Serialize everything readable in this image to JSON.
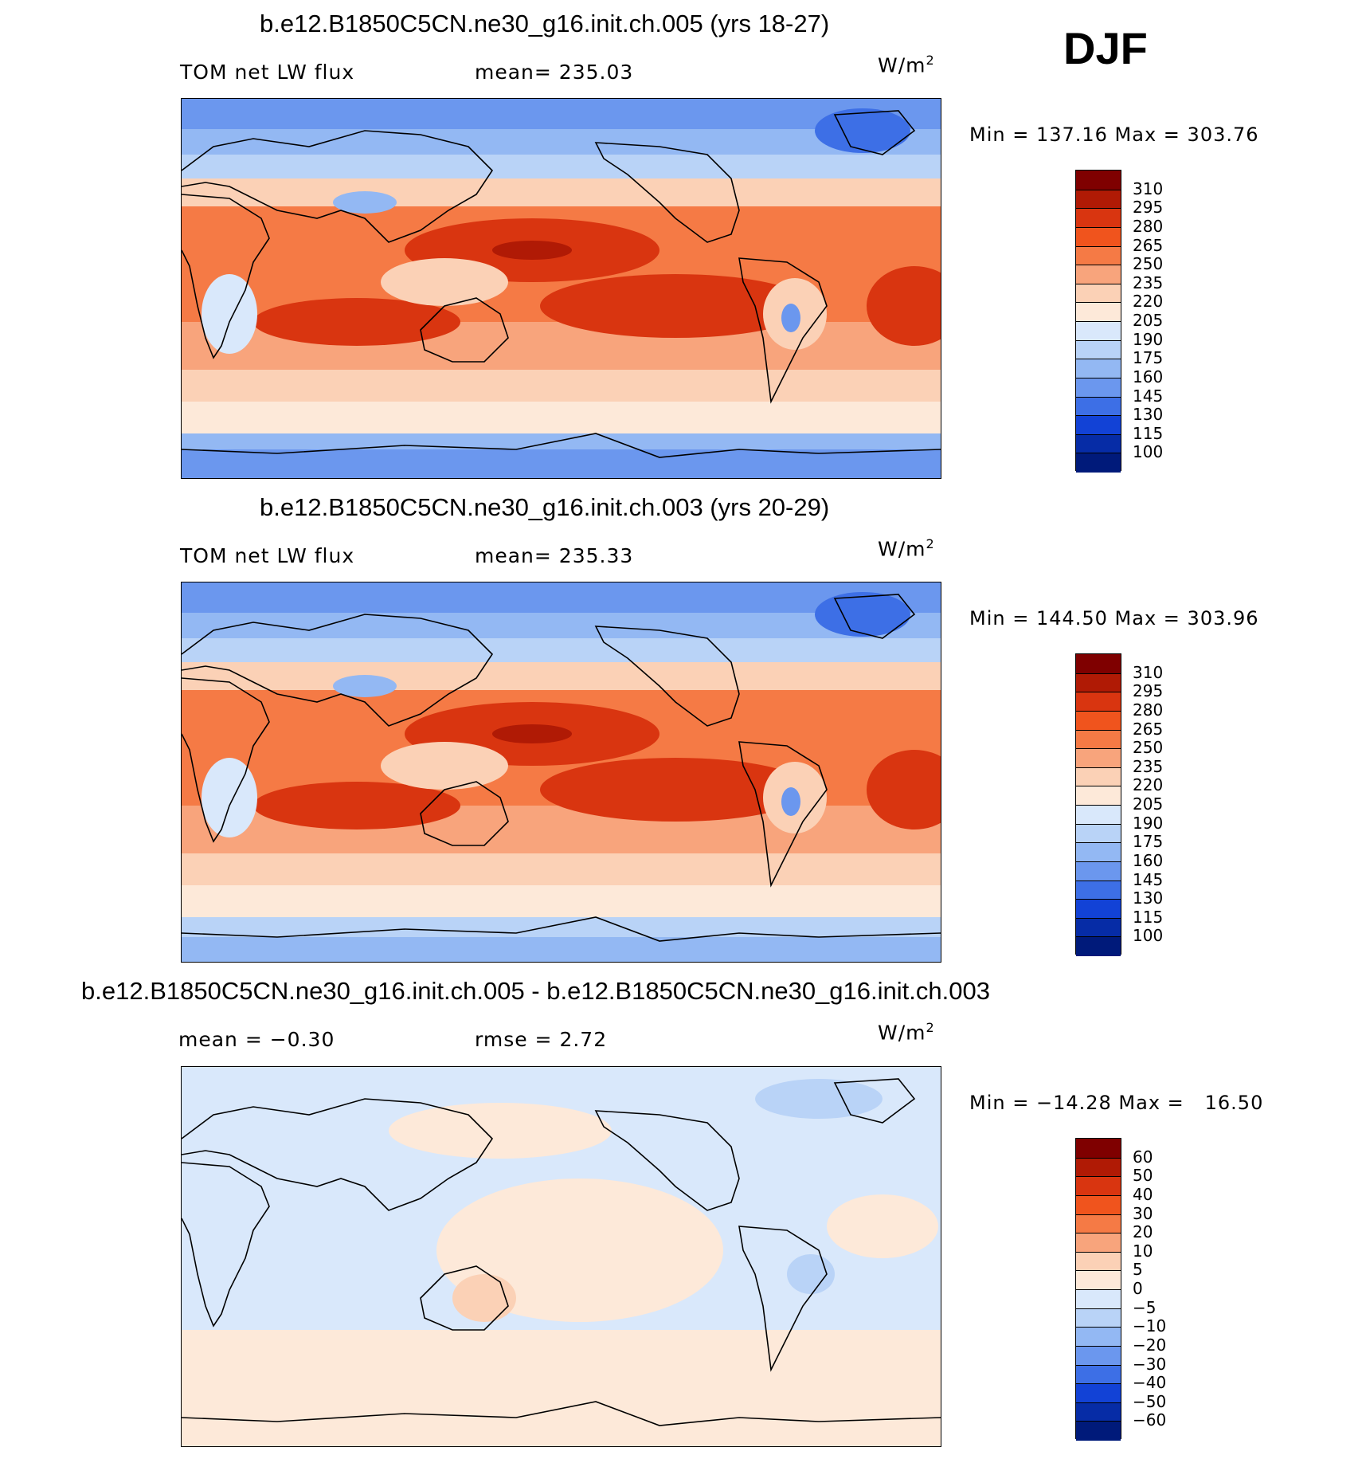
{
  "season": "DJF",
  "chart_data": [
    {
      "type": "heatmap",
      "title": "b.e12.B1850C5CN.ne30_g16.init.ch.005 (yrs 18-27)",
      "variable": "TOM net LW flux",
      "stat_text": "mean= 235.03",
      "units": "W/m",
      "units_exp": "2",
      "min": 137.16,
      "max": 303.76,
      "minmax_text": "Min = 137.16 Max = 303.76",
      "colorbar_levels": [
        "310",
        "295",
        "280",
        "265",
        "250",
        "235",
        "220",
        "205",
        "190",
        "175",
        "160",
        "145",
        "130",
        "115",
        "100"
      ],
      "colorbar_colors": [
        "#7f0000",
        "#b01a05",
        "#d93510",
        "#f0541d",
        "#f57a45",
        "#f8a47c",
        "#fbd1b6",
        "#fde9d9",
        "#d9e8fb",
        "#b9d3f7",
        "#93b8f3",
        "#6b97ee",
        "#3d6fe6",
        "#1242d6",
        "#062ca6",
        "#001a7a"
      ]
    },
    {
      "type": "heatmap",
      "title": "b.e12.B1850C5CN.ne30_g16.init.ch.003 (yrs 20-29)",
      "variable": "TOM net LW flux",
      "stat_text": "mean= 235.33",
      "units": "W/m",
      "units_exp": "2",
      "min": 144.5,
      "max": 303.96,
      "minmax_text": "Min = 144.50 Max = 303.96",
      "colorbar_levels": [
        "310",
        "295",
        "280",
        "265",
        "250",
        "235",
        "220",
        "205",
        "190",
        "175",
        "160",
        "145",
        "130",
        "115",
        "100"
      ],
      "colorbar_colors": [
        "#7f0000",
        "#b01a05",
        "#d93510",
        "#f0541d",
        "#f57a45",
        "#f8a47c",
        "#fbd1b6",
        "#fde9d9",
        "#d9e8fb",
        "#b9d3f7",
        "#93b8f3",
        "#6b97ee",
        "#3d6fe6",
        "#1242d6",
        "#062ca6",
        "#001a7a"
      ]
    },
    {
      "type": "heatmap",
      "title": "b.e12.B1850C5CN.ne30_g16.init.ch.005 - b.e12.B1850C5CN.ne30_g16.init.ch.003",
      "variable": "",
      "stat_text": "mean =   −0.30",
      "stat2_text": "rmse =    2.72",
      "units": "W/m",
      "units_exp": "2",
      "min": -14.28,
      "max": 16.5,
      "minmax_text": "Min = −14.28 Max =   16.50",
      "colorbar_levels": [
        "60",
        "50",
        "40",
        "30",
        "20",
        "10",
        "5",
        "0",
        "−5",
        "−10",
        "−20",
        "−30",
        "−40",
        "−50",
        "−60"
      ],
      "colorbar_colors": [
        "#7f0000",
        "#b01a05",
        "#d93510",
        "#f0541d",
        "#f57a45",
        "#f8a47c",
        "#fbd1b6",
        "#fde9d9",
        "#d9e8fb",
        "#b9d3f7",
        "#93b8f3",
        "#6b97ee",
        "#3d6fe6",
        "#1242d6",
        "#062ca6",
        "#001a7a"
      ]
    }
  ]
}
